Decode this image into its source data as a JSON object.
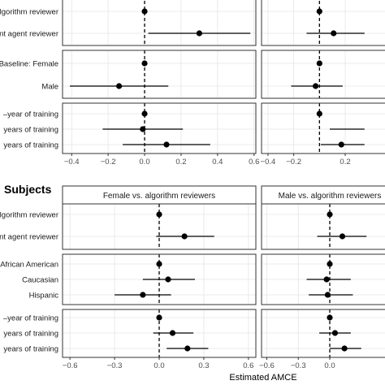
{
  "subjects_title": "Subjects",
  "chart_data": [
    {
      "type": "scatter",
      "style": "coefficient plot with horizontal confidence intervals",
      "panel": "top-left",
      "strip_title": "",
      "xlim": [
        -0.45,
        0.61
      ],
      "x_ticks": [
        "−0.4",
        "−0.2",
        "0.0",
        "0.2",
        "0.4",
        "0.6"
      ],
      "x_tick_values": [
        -0.4,
        -0.2,
        0.0,
        0.2,
        0.4,
        0.6
      ],
      "reference_line": 0,
      "groups": [
        {
          "rows": [
            {
              "label": "algorithm reviewer",
              "estimate": 0.0,
              "lo": null,
              "hi": null
            },
            {
              "label": "gent agent reviewer",
              "estimate": 0.3,
              "lo": 0.02,
              "hi": 0.58
            }
          ]
        },
        {
          "rows": [
            {
              "label": "Baseline: Female",
              "estimate": 0.0,
              "lo": null,
              "hi": null
            },
            {
              "label": "Male",
              "estimate": -0.14,
              "lo": -0.41,
              "hi": 0.13
            }
          ]
        },
        {
          "rows": [
            {
              "label": "–year of training",
              "estimate": 0.0,
              "lo": null,
              "hi": null
            },
            {
              "label": "years of training",
              "estimate": -0.01,
              "lo": -0.23,
              "hi": 0.21
            },
            {
              "label": "years of training",
              "estimate": 0.12,
              "lo": -0.12,
              "hi": 0.36
            }
          ]
        }
      ]
    },
    {
      "type": "scatter",
      "panel": "top-right",
      "strip_title": "",
      "xlim": [
        -0.45,
        0.61
      ],
      "x_ticks": [
        "−0.4",
        "−0.2",
        "0.2"
      ],
      "x_tick_values": [
        -0.4,
        -0.2,
        0.2
      ],
      "reference_line": 0,
      "groups": [
        {
          "rows": [
            {
              "estimate": 0.0,
              "lo": null,
              "hi": null
            },
            {
              "estimate": 0.11,
              "lo": -0.1,
              "hi": 0.35
            }
          ]
        },
        {
          "rows": [
            {
              "estimate": 0.0,
              "lo": null,
              "hi": null
            },
            {
              "estimate": -0.03,
              "lo": -0.22,
              "hi": 0.18
            }
          ]
        },
        {
          "rows": [
            {
              "estimate": 0.0,
              "lo": null,
              "hi": null
            },
            {
              "estimate": null,
              "lo": 0.08,
              "hi": 0.35
            },
            {
              "estimate": 0.17,
              "lo": 0.01,
              "hi": 0.35
            }
          ]
        }
      ]
    },
    {
      "type": "scatter",
      "panel": "bottom-left",
      "strip_title": "Female vs. algorithm reviewers",
      "xlim": [
        -0.65,
        0.65
      ],
      "x_ticks": [
        "−0.6",
        "−0.3",
        "0.0",
        "0.3",
        "0.6"
      ],
      "x_tick_values": [
        -0.6,
        -0.3,
        0.0,
        0.3,
        0.6
      ],
      "reference_line": 0,
      "groups": [
        {
          "rows": [
            {
              "label": "lgorithm reviewer",
              "estimate": 0.0,
              "lo": null,
              "hi": null
            },
            {
              "label": "nt agent reviewer",
              "estimate": 0.17,
              "lo": -0.02,
              "hi": 0.37
            }
          ]
        },
        {
          "rows": [
            {
              "label": "African American",
              "estimate": 0.0,
              "lo": null,
              "hi": null
            },
            {
              "label": "Caucasian",
              "estimate": 0.06,
              "lo": -0.11,
              "hi": 0.24
            },
            {
              "label": "Hispanic",
              "estimate": -0.11,
              "lo": -0.3,
              "hi": 0.08
            }
          ]
        },
        {
          "rows": [
            {
              "label": "–year of training",
              "estimate": 0.0,
              "lo": null,
              "hi": null
            },
            {
              "label": "years of training",
              "estimate": 0.09,
              "lo": -0.04,
              "hi": 0.23
            },
            {
              "label": "years of training",
              "estimate": 0.19,
              "lo": 0.05,
              "hi": 0.33
            }
          ]
        }
      ]
    },
    {
      "type": "scatter",
      "panel": "bottom-right",
      "strip_title": "Male vs. algorithm reviewers",
      "xlim": [
        -0.65,
        0.65
      ],
      "x_ticks": [
        "−0.6",
        "−0.3",
        "0.0"
      ],
      "x_tick_values": [
        -0.6,
        -0.3,
        0.0
      ],
      "xlabel": "Estimated AMCE",
      "reference_line": 0,
      "groups": [
        {
          "rows": [
            {
              "estimate": 0.0,
              "lo": null,
              "hi": null
            },
            {
              "estimate": 0.12,
              "lo": -0.12,
              "hi": 0.35
            }
          ]
        },
        {
          "rows": [
            {
              "estimate": 0.0,
              "lo": null,
              "hi": null
            },
            {
              "estimate": -0.03,
              "lo": -0.22,
              "hi": 0.2
            },
            {
              "estimate": -0.02,
              "lo": -0.2,
              "hi": 0.22
            }
          ]
        },
        {
          "rows": [
            {
              "estimate": 0.0,
              "lo": null,
              "hi": null
            },
            {
              "estimate": 0.05,
              "lo": -0.1,
              "hi": 0.2
            },
            {
              "estimate": 0.14,
              "lo": 0.0,
              "hi": 0.3
            }
          ]
        }
      ]
    }
  ],
  "colors": {
    "panel_border": "#333333",
    "grid": "#e5e5e5",
    "strip_fill": "#ffffff",
    "point": "#000000",
    "reference": "#000000",
    "tick_text": "#4d4d4d"
  }
}
